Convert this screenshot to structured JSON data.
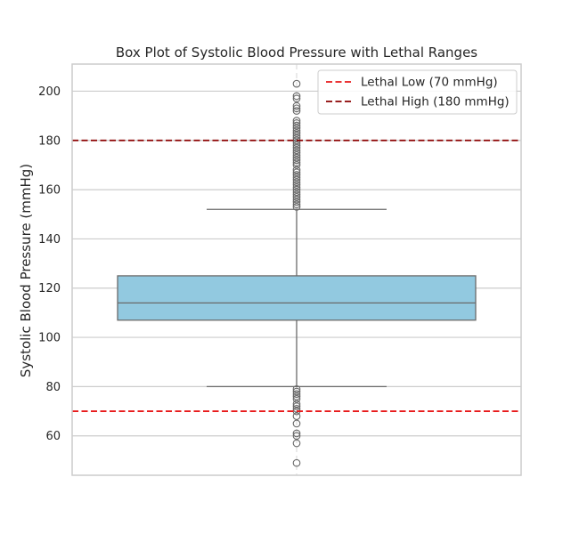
{
  "chart_data": {
    "type": "box",
    "title": "Box Plot of Systolic Blood Pressure with Lethal Ranges",
    "xlabel": "",
    "ylabel": "Systolic Blood Pressure (mmHg)",
    "ylim": [
      44,
      211
    ],
    "yticks": [
      60,
      80,
      100,
      120,
      140,
      160,
      180,
      200
    ],
    "grid": true,
    "legend_position": "top-right",
    "box": {
      "color": "#92c9e0",
      "edge_color": "#6a6a6a",
      "q1": 107,
      "median": 114,
      "q3": 125,
      "whisker_low": 80,
      "whisker_high": 152,
      "outliers": [
        49,
        57,
        60,
        61,
        65,
        68,
        70,
        71,
        72,
        73,
        75,
        76,
        77,
        78,
        79,
        153,
        154,
        155,
        156,
        157,
        158,
        159,
        160,
        161,
        162,
        163,
        164,
        165,
        166,
        167,
        168,
        170,
        171,
        172,
        173,
        174,
        175,
        176,
        177,
        178,
        179,
        180,
        181,
        182,
        183,
        184,
        185,
        186,
        187,
        188,
        192,
        193,
        194,
        197,
        198,
        203
      ]
    },
    "reference_lines": [
      {
        "name": "Lethal Low (70 mmHg)",
        "value": 70,
        "color": "#e8191a"
      },
      {
        "name": "Lethal High (180 mmHg)",
        "value": 180,
        "color": "#8b0000"
      }
    ]
  }
}
